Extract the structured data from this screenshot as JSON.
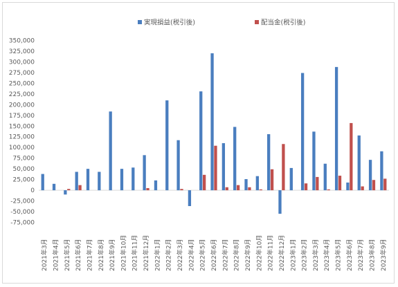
{
  "chart_data": {
    "type": "bar",
    "legend_position": "top",
    "grid": false,
    "ylim": [
      -75000,
      350000
    ],
    "yticks": [
      -75000,
      -50000,
      -25000,
      0,
      25000,
      50000,
      75000,
      100000,
      125000,
      150000,
      175000,
      200000,
      225000,
      250000,
      275000,
      300000,
      325000,
      350000
    ],
    "ytick_labels": [
      "-75,000",
      "-50,000",
      "-25,000",
      "0",
      "25,000",
      "50,000",
      "75,000",
      "100,000",
      "125,000",
      "150,000",
      "175,000",
      "200,000",
      "225,000",
      "250,000",
      "275,000",
      "300,000",
      "325,000",
      "350,000"
    ],
    "categories": [
      "2021年3月",
      "2021年4月",
      "2021年5月",
      "2021年6月",
      "2021年7月",
      "2021年8月",
      "2021年9月",
      "2021年10月",
      "2021年11月",
      "2021年12月",
      "2022年1月",
      "2022年2月",
      "2022年3月",
      "2022年4月",
      "2022年5月",
      "2022年6月",
      "2022年7月",
      "2022年8月",
      "2022年9月",
      "2022年10月",
      "2022年11月",
      "2022年12月",
      "2023年1月",
      "2023年2月",
      "2023年3月",
      "2023年4月",
      "2023年5月",
      "2023年6月",
      "2023年7月",
      "2023年8月",
      "2023年9月"
    ],
    "series": [
      {
        "name": "実現損益(税引後)",
        "color": "#4a7ebf",
        "values": [
          38000,
          15000,
          -10000,
          43000,
          50000,
          43000,
          184000,
          50000,
          53000,
          82000,
          23000,
          210000,
          117000,
          -37000,
          231000,
          320000,
          110000,
          148000,
          26000,
          33000,
          131000,
          -55000,
          52000,
          274000,
          137000,
          62000,
          288000,
          18000,
          128000,
          71000,
          91000
        ]
      },
      {
        "name": "配当金(税引後)",
        "color": "#c0504d",
        "values": [
          0,
          0,
          3000,
          12000,
          0,
          0,
          0,
          0,
          0,
          5000,
          0,
          0,
          3000,
          0,
          36000,
          104000,
          7000,
          12000,
          7000,
          2000,
          49000,
          108000,
          0,
          16000,
          31000,
          2000,
          34000,
          157000,
          9000,
          24000,
          27000
        ]
      }
    ]
  }
}
